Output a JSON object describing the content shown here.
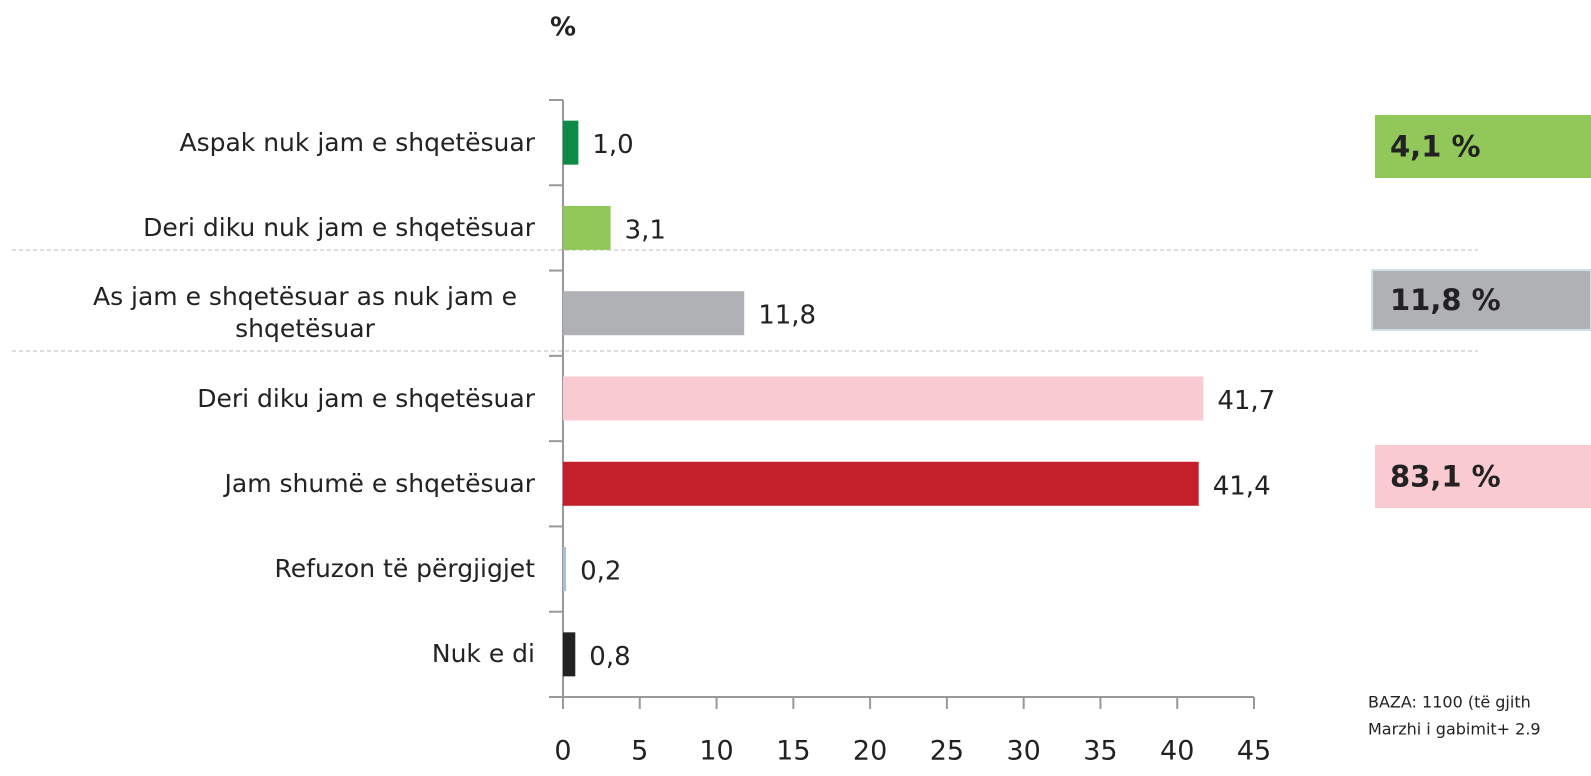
{
  "chart_data": {
    "type": "barh",
    "axis_label": "%",
    "categories": [
      "Aspak nuk jam e shqetësuar",
      "Deri diku nuk jam e shqetësuar",
      "As jam e shqetësuar as nuk jam e shqetësuar",
      "Deri diku jam e shqetësuar",
      "Jam shumë e shqetësuar",
      "Refuzon të përgjigjet",
      "Nuk e di"
    ],
    "values": [
      1.0,
      3.1,
      11.8,
      41.7,
      41.4,
      0.2,
      0.8
    ],
    "value_labels": [
      "1,0",
      "3,1",
      "11,8",
      "41,7",
      "41,4",
      "0,2",
      "0,8"
    ],
    "colors": [
      "#0e8a48",
      "#92c85a",
      "#b0b1b5",
      "#f9cad0",
      "#c4202a",
      "#a8bfd6",
      "#222222"
    ],
    "xlim": [
      0,
      45
    ],
    "xticks": [
      0,
      5,
      10,
      15,
      20,
      25,
      30,
      35,
      40,
      45
    ],
    "summary": [
      {
        "label": "4,1 %",
        "color": "#92c85a"
      },
      {
        "label": "11,8 %",
        "color": "#b0b1b5"
      },
      {
        "label": "83,1 %",
        "color": "#f9cad0"
      }
    ],
    "notes": [
      "BAZA: 1100  (të gjith",
      "Marzhi i gabimit+ 2.9"
    ]
  }
}
